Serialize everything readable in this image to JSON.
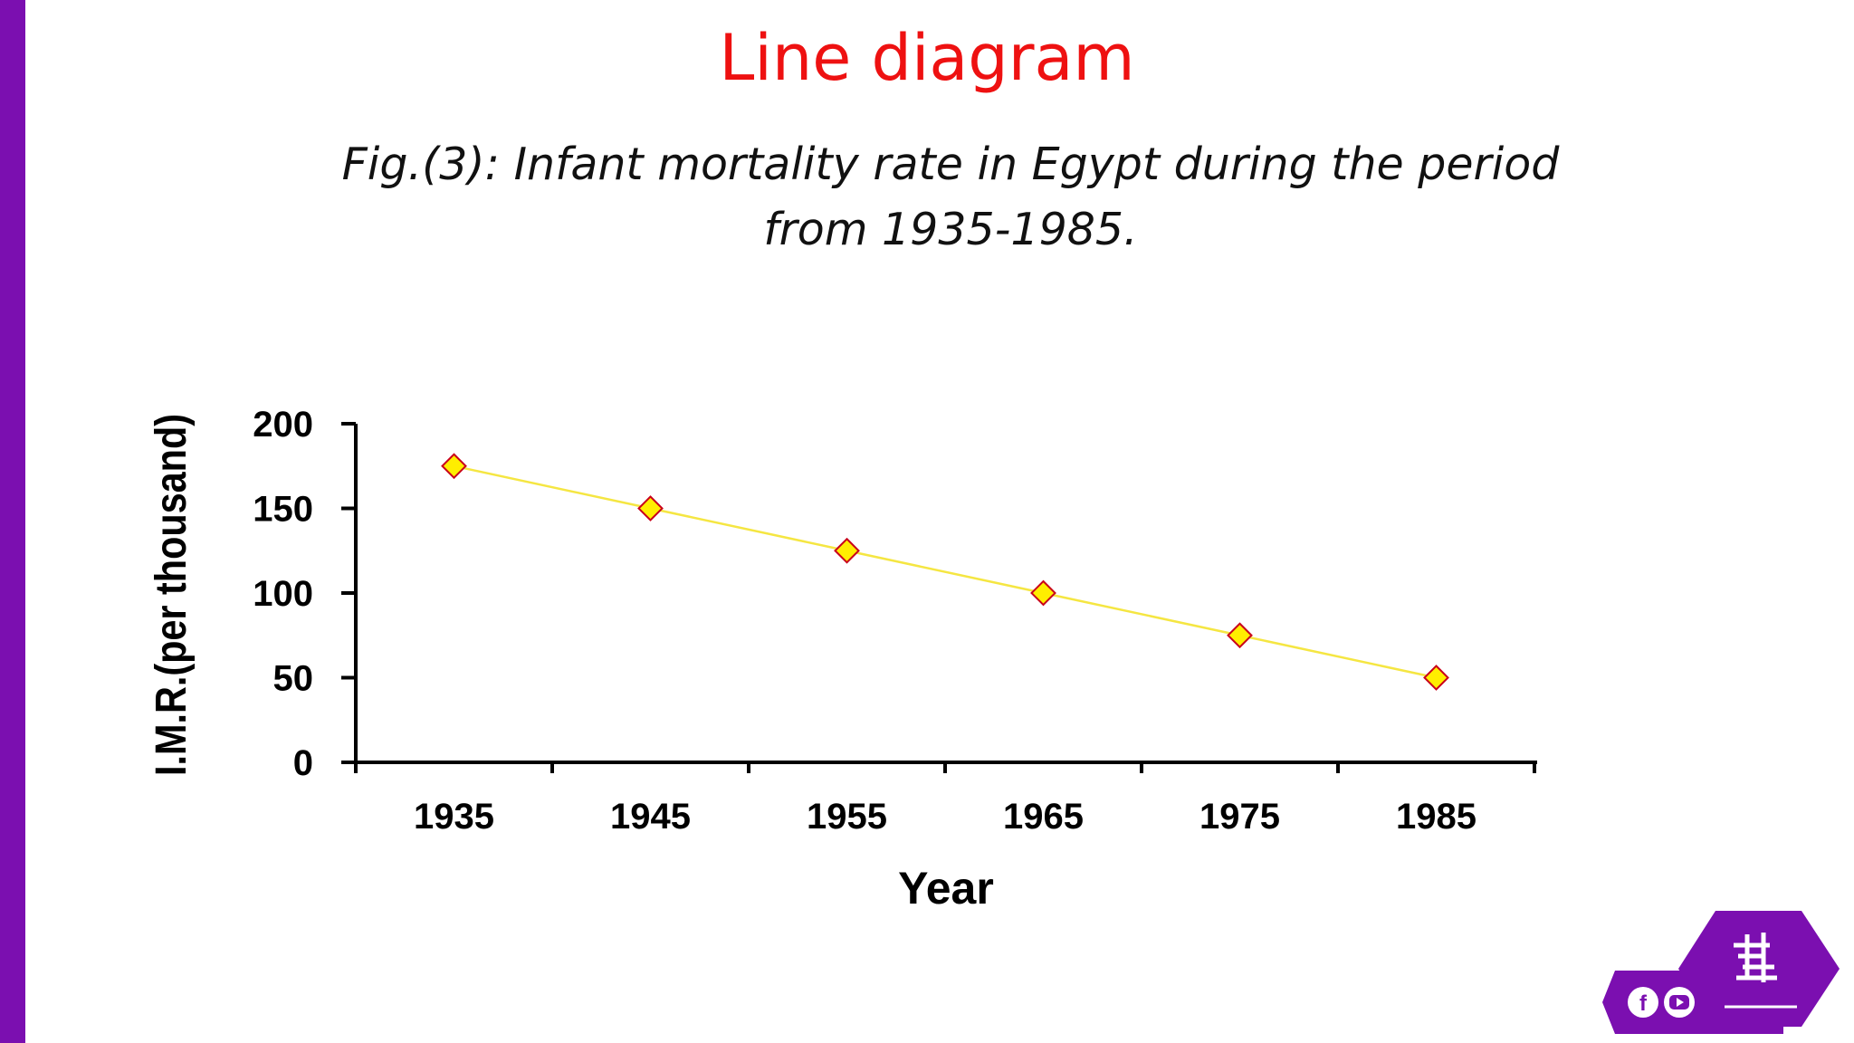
{
  "slide": {
    "title": "Line diagram",
    "caption_line1": "Fig.(3): Infant mortality rate in Egypt during the period",
    "caption_line2": "from 1935-1985."
  },
  "colors": {
    "title": "#ee1111",
    "left_bar": "#7b0fb0",
    "series_line": "#f5e642",
    "marker_fill": "#ffee00",
    "marker_stroke": "#c9001b",
    "logo_bg": "#7b0fb0"
  },
  "chart_data": {
    "type": "line",
    "title": "",
    "xlabel": "Year",
    "ylabel": "I.M.R.(per thousand)",
    "x": [
      "1935",
      "1945",
      "1955",
      "1965",
      "1975",
      "1985"
    ],
    "series": [
      {
        "values": [
          175,
          150,
          125,
          100,
          75,
          50
        ]
      }
    ],
    "ylim": [
      0,
      200
    ],
    "yticks": [
      0,
      50,
      100,
      150,
      200
    ],
    "grid": false,
    "legend": "none",
    "marker": "diamond"
  },
  "logo": {
    "icons": [
      "facebook-icon",
      "youtube-icon"
    ]
  }
}
